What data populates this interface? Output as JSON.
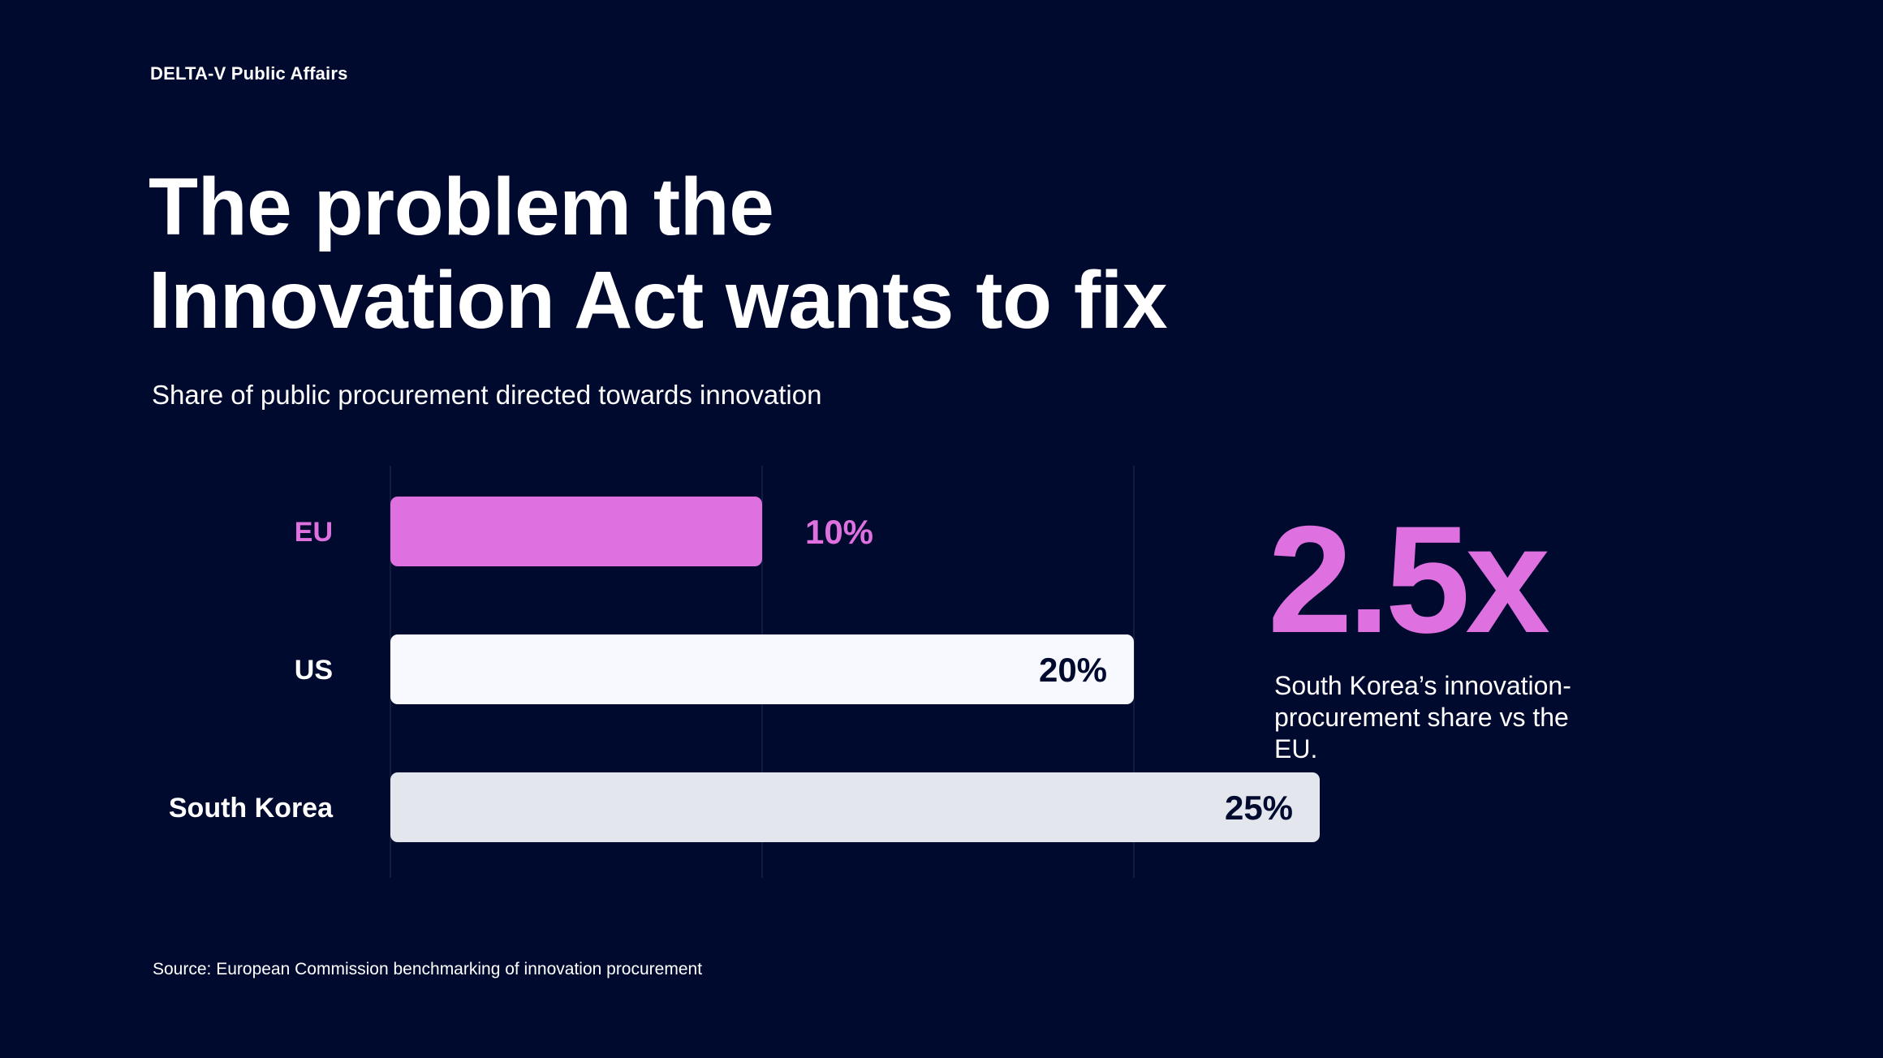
{
  "header": {
    "brand": "DELTA-V Public Affairs"
  },
  "slide": {
    "title_line1": "The problem the",
    "title_line2": "Innovation Act wants to fix",
    "subtitle": "Share of public procurement directed towards innovation"
  },
  "callout": {
    "value": "2.5x",
    "text": "South Korea’s innovation-procurement share vs the EU."
  },
  "source": "Source: European Commission benchmarking of innovation procurement",
  "colors": {
    "background": "#000a2e",
    "accent": "#de70e0",
    "us_bar": "#f8f9fe",
    "korea_bar": "#e4e6ee",
    "dark_label": "#000a2e",
    "grid": "#141b3c"
  },
  "chart_data": {
    "type": "bar",
    "orientation": "horizontal",
    "categories": [
      "EU",
      "US",
      "South Korea"
    ],
    "values": [
      10,
      20,
      25
    ],
    "value_labels": [
      "10%",
      "20%",
      "25%"
    ],
    "unit": "%",
    "xlim": [
      0,
      25
    ],
    "grid": true,
    "gridlines": [
      0,
      10,
      20
    ],
    "title": "",
    "xlabel": "",
    "ylabel": ""
  }
}
